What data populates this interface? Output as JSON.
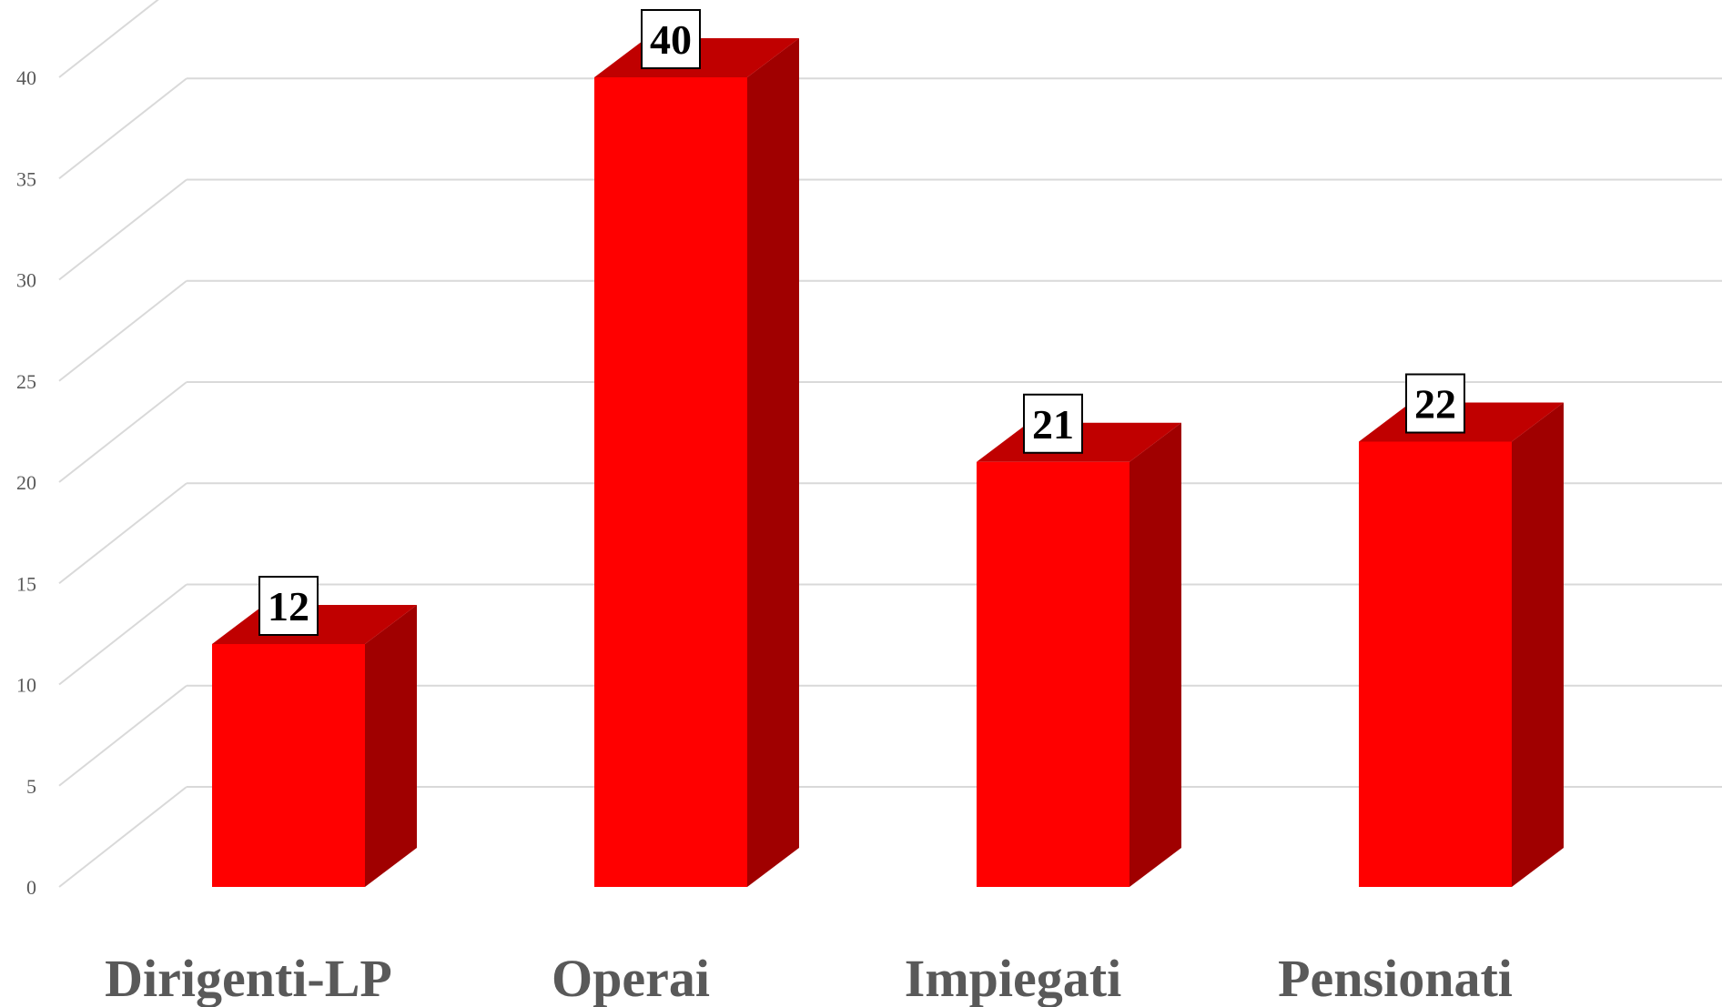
{
  "chart_data": {
    "type": "bar",
    "style": "3d-column",
    "categories": [
      "Dirigenti-LP",
      "Operai",
      "Impiegati",
      "Pensionati"
    ],
    "values": [
      12,
      40,
      21,
      22
    ],
    "data_labels": [
      "12",
      "40",
      "21",
      "22"
    ],
    "title": "",
    "xlabel": "",
    "ylabel": "",
    "ylim": [
      0,
      45
    ],
    "yticks": [
      0,
      5,
      10,
      15,
      20,
      25,
      30,
      35,
      40
    ],
    "ytick_labels": [
      "0",
      "5",
      "10",
      "15",
      "20",
      "25",
      "30",
      "35",
      "40"
    ],
    "grid": true,
    "legend": "none",
    "colors": {
      "bar_front": "#ff0000",
      "bar_top": "#c00000",
      "bar_side": "#a00000",
      "grid": "#d9d9d9",
      "axis_text": "#595959"
    }
  }
}
